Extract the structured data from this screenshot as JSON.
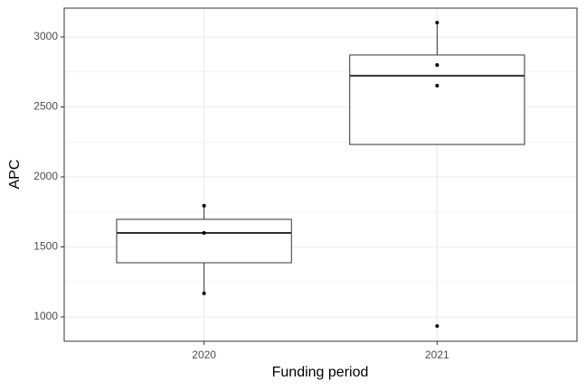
{
  "chart_data": {
    "type": "box",
    "x_label": "Funding period",
    "y_label": "APC",
    "categories": [
      "2020",
      "2021"
    ],
    "boxes": [
      {
        "whisker_low": 1168,
        "q1": 1387,
        "median": 1600,
        "q3": 1697,
        "whisker_high": 1794,
        "points": [
          1794,
          1600,
          1168
        ]
      },
      {
        "whisker_low": 2232,
        "q1": 2232,
        "median": 2723,
        "q3": 2871,
        "whisker_high": 3103,
        "points": [
          3103,
          2800,
          2652,
          935
        ]
      }
    ],
    "ylim": [
      826,
      3206
    ],
    "yticks": [
      1000,
      1500,
      2000,
      2500,
      3000
    ],
    "grid": true
  }
}
